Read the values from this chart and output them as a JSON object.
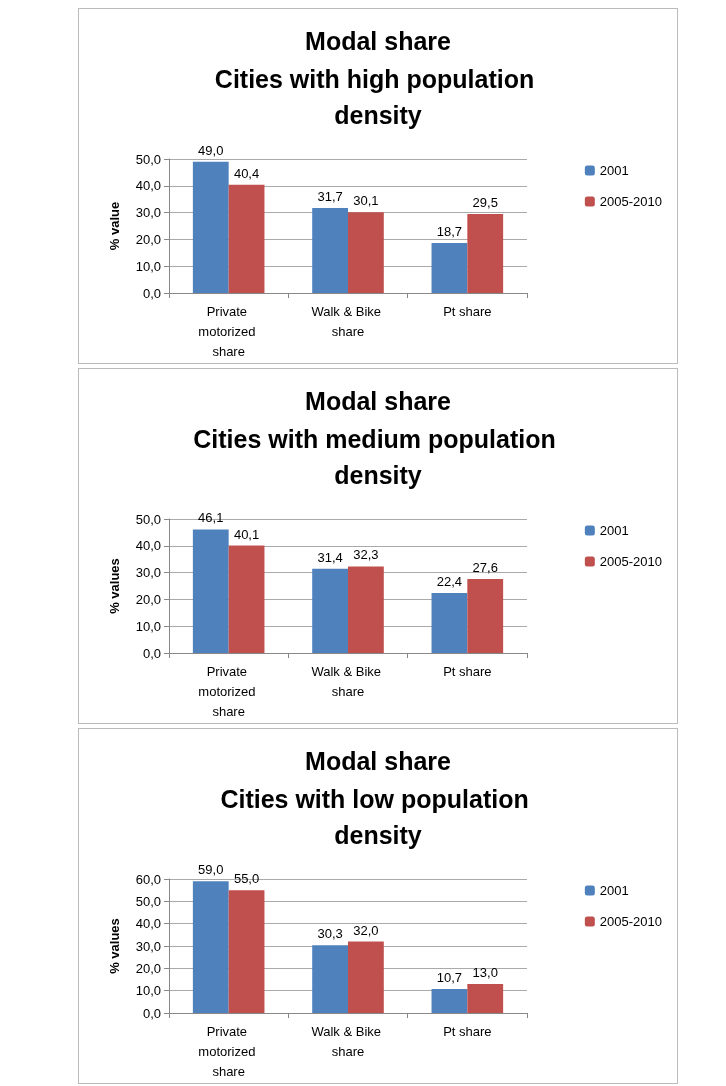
{
  "chart_data": [
    {
      "type": "bar",
      "title": "Modal share",
      "subtitle": "Cities with high population density",
      "ylabel": "% value",
      "categories": [
        "Private motorized share",
        "Walk & Bike share",
        "Pt share"
      ],
      "series": [
        {
          "name": "2001",
          "color": "#4f81bd",
          "values": [
            49.0,
            31.7,
            18.7
          ],
          "value_labels": [
            "49,0",
            "31,7",
            "18,7"
          ]
        },
        {
          "name": "2005-2010",
          "color": "#c0504d",
          "values": [
            40.4,
            30.1,
            29.5
          ],
          "value_labels": [
            "40,4",
            "30,1",
            "29,5"
          ]
        }
      ],
      "ylim": [
        0,
        50
      ],
      "yticks": [
        {
          "value": 0,
          "label": "0,0"
        },
        {
          "value": 10,
          "label": "10,0"
        },
        {
          "value": 20,
          "label": "20,0"
        },
        {
          "value": 30,
          "label": "30,0"
        },
        {
          "value": 40,
          "label": "40,0"
        },
        {
          "value": 50,
          "label": "50,0"
        }
      ],
      "grid": "y",
      "legend": "right"
    },
    {
      "type": "bar",
      "title": "Modal share",
      "subtitle": "Cities with medium population density",
      "ylabel": "% values",
      "categories": [
        "Private motorized share",
        "Walk & Bike share",
        "Pt share"
      ],
      "series": [
        {
          "name": "2001",
          "color": "#4f81bd",
          "values": [
            46.1,
            31.4,
            22.4
          ],
          "value_labels": [
            "46,1",
            "31,4",
            "22,4"
          ]
        },
        {
          "name": "2005-2010",
          "color": "#c0504d",
          "values": [
            40.1,
            32.3,
            27.6
          ],
          "value_labels": [
            "40,1",
            "32,3",
            "27,6"
          ]
        }
      ],
      "ylim": [
        0,
        50
      ],
      "yticks": [
        {
          "value": 0,
          "label": "0,0"
        },
        {
          "value": 10,
          "label": "10,0"
        },
        {
          "value": 20,
          "label": "20,0"
        },
        {
          "value": 30,
          "label": "30,0"
        },
        {
          "value": 40,
          "label": "40,0"
        },
        {
          "value": 50,
          "label": "50,0"
        }
      ],
      "grid": "y",
      "legend": "right"
    },
    {
      "type": "bar",
      "title": "Modal share",
      "subtitle": "Cities with low population density",
      "ylabel": "% values",
      "categories": [
        "Private motorized share",
        "Walk & Bike share",
        "Pt share"
      ],
      "series": [
        {
          "name": "2001",
          "color": "#4f81bd",
          "values": [
            59.0,
            30.3,
            10.7
          ],
          "value_labels": [
            "59,0",
            "30,3",
            "10,7"
          ]
        },
        {
          "name": "2005-2010",
          "color": "#c0504d",
          "values": [
            55.0,
            32.0,
            13.0
          ],
          "value_labels": [
            "55,0",
            "32,0",
            "13,0"
          ]
        }
      ],
      "ylim": [
        0,
        60
      ],
      "yticks": [
        {
          "value": 0,
          "label": "0,0"
        },
        {
          "value": 10,
          "label": "10,0"
        },
        {
          "value": 20,
          "label": "20,0"
        },
        {
          "value": 30,
          "label": "30,0"
        },
        {
          "value": 40,
          "label": "40,0"
        },
        {
          "value": 50,
          "label": "50,0"
        },
        {
          "value": 60,
          "label": "60,0"
        }
      ],
      "grid": "y",
      "legend": "right"
    }
  ]
}
